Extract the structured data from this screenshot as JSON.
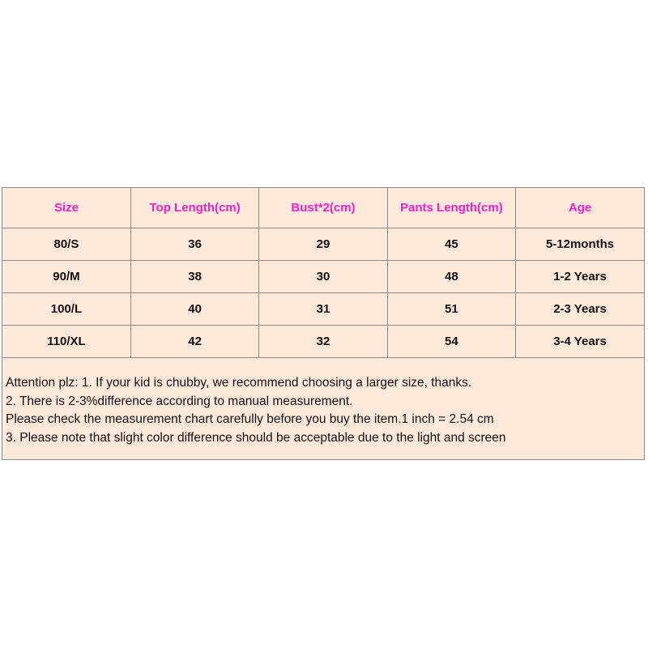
{
  "table": {
    "header": [
      "Size",
      "Top Length(cm)",
      "Bust*2(cm)",
      "Pants Length(cm)",
      "Age"
    ],
    "rows": [
      [
        "80/S",
        "36",
        "29",
        "45",
        "5-12months"
      ],
      [
        "90/M",
        "38",
        "30",
        "48",
        "1-2 Years"
      ],
      [
        "100/L",
        "40",
        "31",
        "51",
        "2-3 Years"
      ],
      [
        "110/XL",
        "42",
        "32",
        "54",
        "3-4 Years"
      ]
    ]
  },
  "notes": [
    "Attention plz: 1. If your kid is chubby, we recommend choosing a larger size, thanks.",
    "2. There is 2-3%difference according to manual measurement.",
    "Please check the measurement chart carefully before you buy the item.1 inch = 2.54 cm",
    "3. Please note that slight color difference should be acceptable due to the light and screen"
  ]
}
